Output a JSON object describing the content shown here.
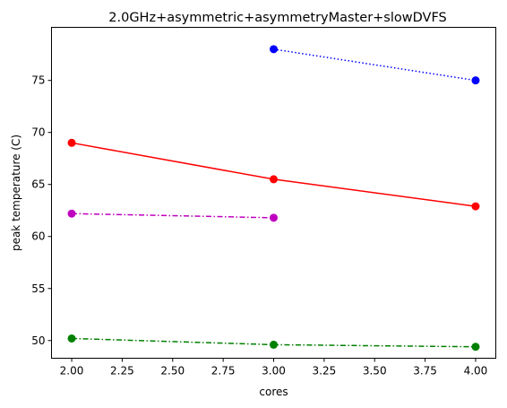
{
  "chart_data": {
    "type": "line",
    "title": "2.0GHz+asymmetric+asymmetryMaster+slowDVFS",
    "xlabel": "cores",
    "ylabel": "peak temperature (C)",
    "xlim": [
      1.9,
      4.1
    ],
    "ylim": [
      48.3,
      80.1
    ],
    "xticks": [
      2.0,
      2.25,
      2.5,
      2.75,
      3.0,
      3.25,
      3.5,
      3.75,
      4.0
    ],
    "xtick_labels": [
      "2.00",
      "2.25",
      "2.50",
      "2.75",
      "3.00",
      "3.25",
      "3.50",
      "3.75",
      "4.00"
    ],
    "yticks": [
      50,
      55,
      60,
      65,
      70,
      75
    ],
    "ytick_labels": [
      "50",
      "55",
      "60",
      "65",
      "70",
      "75"
    ],
    "grid": false,
    "series": [
      {
        "color": "#0000ff",
        "linestyle": "dotted",
        "marker": "circle",
        "points": [
          [
            3,
            78.0
          ],
          [
            4,
            75.0
          ]
        ]
      },
      {
        "color": "#ff0000",
        "linestyle": "solid",
        "marker": "circle",
        "points": [
          [
            2,
            69.0
          ],
          [
            3,
            65.5
          ],
          [
            4,
            62.9
          ]
        ]
      },
      {
        "color": "#bf00bf",
        "linestyle": "dashdot",
        "marker": "circle",
        "points": [
          [
            2,
            62.2
          ],
          [
            3,
            61.8
          ]
        ]
      },
      {
        "color": "#008000",
        "linestyle": "dashdot",
        "marker": "circle",
        "points": [
          [
            2,
            50.2
          ],
          [
            3,
            49.6
          ],
          [
            4,
            49.4
          ]
        ]
      }
    ]
  }
}
